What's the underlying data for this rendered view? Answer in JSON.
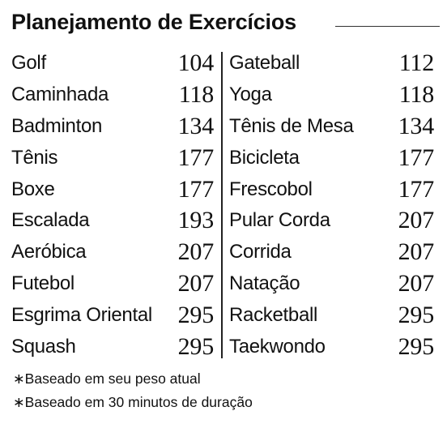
{
  "title": "Planejamento de Exercícios",
  "left_column": [
    {
      "name": "Golf",
      "value": "104"
    },
    {
      "name": "Caminhada",
      "value": "118"
    },
    {
      "name": "Badminton",
      "value": "134"
    },
    {
      "name": "Tênis",
      "value": "177"
    },
    {
      "name": "Boxe",
      "value": "177"
    },
    {
      "name": "Escalada",
      "value": "193"
    },
    {
      "name": "Aeróbica",
      "value": "207"
    },
    {
      "name": "Futebol",
      "value": "207"
    },
    {
      "name": "Esgrima Oriental",
      "value": "295"
    },
    {
      "name": "Squash",
      "value": "295"
    }
  ],
  "right_column": [
    {
      "name": "Gateball",
      "value": "112"
    },
    {
      "name": "Yoga",
      "value": "118"
    },
    {
      "name": "Tênis de Mesa",
      "value": "134"
    },
    {
      "name": "Bicicleta",
      "value": "177"
    },
    {
      "name": "Frescobol",
      "value": "177"
    },
    {
      "name": "Pular Corda",
      "value": "207"
    },
    {
      "name": "Corrida",
      "value": "207"
    },
    {
      "name": "Natação",
      "value": "207"
    },
    {
      "name": "Racketball",
      "value": "295"
    },
    {
      "name": "Taekwondo",
      "value": "295"
    }
  ],
  "notes": [
    "∗Baseado em seu peso atual",
    "∗Baseado em 30 minutos de duração"
  ]
}
